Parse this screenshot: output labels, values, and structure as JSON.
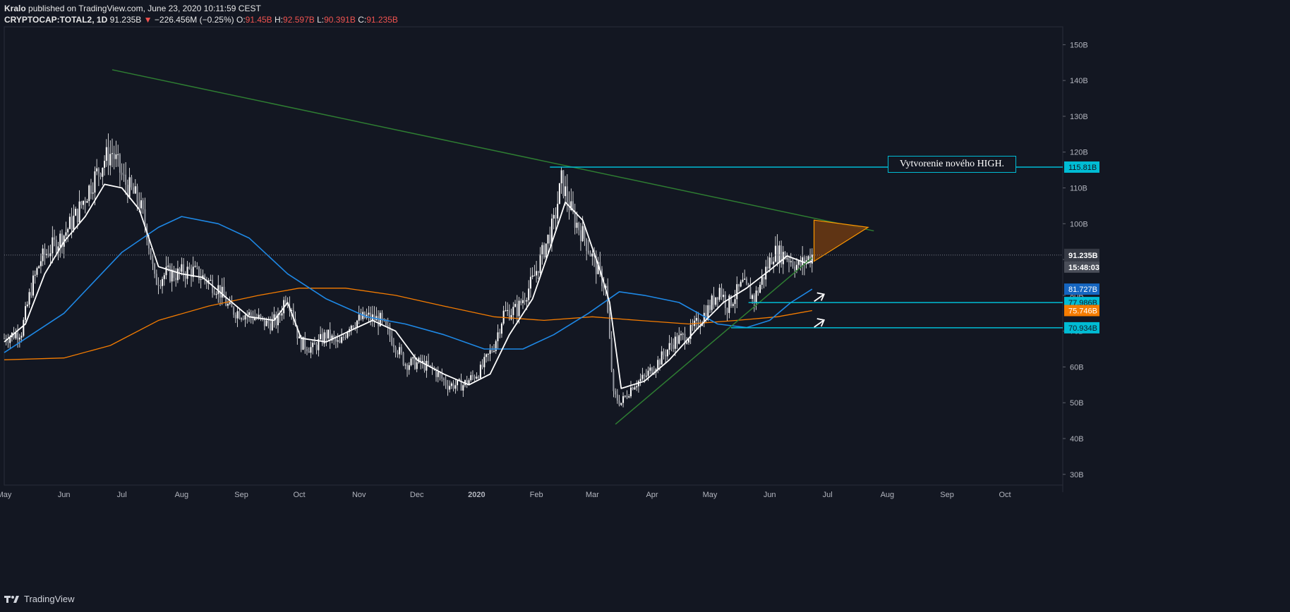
{
  "header": {
    "author": "Kralo",
    "published_text": "published on TradingView.com, June 23, 2020 10:11:59 CEST",
    "symbol": "CRYPTOCAP:TOTAL2, 1D",
    "last": "91.235B",
    "change": "−226.456M (−0.25%)",
    "o_label": "O:",
    "o_value": "91.45B",
    "h_label": "H:",
    "h_value": "92.597B",
    "l_label": "L:",
    "l_value": "90.391B",
    "c_label": "C:",
    "c_value": "91.235B"
  },
  "footer": {
    "brand": "TradingView"
  },
  "annotation": {
    "text": "Vytvorenie nového HIGH."
  },
  "colors": {
    "background": "#131722",
    "candle": "#ffffff",
    "ma_fast": "#ffffff",
    "ma_mid": "#1e88e5",
    "ma_slow": "#f57c00",
    "trendline": "#2e7d32",
    "level": "#00bcd4",
    "triangle_fill": "#6d3a12",
    "triangle_stroke": "#ff9800"
  },
  "chart_data": {
    "type": "candlestick",
    "title": "",
    "y_unit": "B",
    "yticks": [
      "150B",
      "140B",
      "130B",
      "120B",
      "110B",
      "100B",
      "90B",
      "80B",
      "70B",
      "60B",
      "50B",
      "40B",
      "30B"
    ],
    "ylim": [
      27,
      155
    ],
    "x_start": "2019-05-01",
    "x_end": "2020-10-31",
    "xticks": [
      {
        "label": "May",
        "date": "2019-05-01"
      },
      {
        "label": "Jun",
        "date": "2019-06-01"
      },
      {
        "label": "Jul",
        "date": "2019-07-01"
      },
      {
        "label": "Aug",
        "date": "2019-08-01"
      },
      {
        "label": "Sep",
        "date": "2019-09-01"
      },
      {
        "label": "Oct",
        "date": "2019-10-01"
      },
      {
        "label": "Nov",
        "date": "2019-11-01"
      },
      {
        "label": "Dec",
        "date": "2019-12-01"
      },
      {
        "label": "2020",
        "date": "2020-01-01"
      },
      {
        "label": "Feb",
        "date": "2020-02-01"
      },
      {
        "label": "Mar",
        "date": "2020-03-01"
      },
      {
        "label": "Apr",
        "date": "2020-04-01"
      },
      {
        "label": "May",
        "date": "2020-05-01"
      },
      {
        "label": "Jun",
        "date": "2020-06-01"
      },
      {
        "label": "Jul",
        "date": "2020-07-01"
      },
      {
        "label": "Aug",
        "date": "2020-08-01"
      },
      {
        "label": "Sep",
        "date": "2020-09-01"
      },
      {
        "label": "Oct",
        "date": "2020-10-01"
      }
    ],
    "close_series": [
      [
        "2019-05-01",
        68
      ],
      [
        "2019-05-10",
        70
      ],
      [
        "2019-05-15",
        82
      ],
      [
        "2019-05-20",
        90
      ],
      [
        "2019-05-25",
        93
      ],
      [
        "2019-06-01",
        97
      ],
      [
        "2019-06-08",
        103
      ],
      [
        "2019-06-15",
        111
      ],
      [
        "2019-06-22",
        118
      ],
      [
        "2019-06-26",
        120
      ],
      [
        "2019-07-02",
        112
      ],
      [
        "2019-07-10",
        106
      ],
      [
        "2019-07-14",
        98
      ],
      [
        "2019-07-18",
        84
      ],
      [
        "2019-07-24",
        86
      ],
      [
        "2019-07-30",
        86
      ],
      [
        "2019-08-06",
        87
      ],
      [
        "2019-08-12",
        85
      ],
      [
        "2019-08-20",
        82
      ],
      [
        "2019-08-26",
        76
      ],
      [
        "2019-09-02",
        75
      ],
      [
        "2019-09-08",
        74
      ],
      [
        "2019-09-14",
        72
      ],
      [
        "2019-09-20",
        73
      ],
      [
        "2019-09-24",
        80
      ],
      [
        "2019-09-27",
        77
      ],
      [
        "2019-10-01",
        67
      ],
      [
        "2019-10-08",
        65
      ],
      [
        "2019-10-15",
        69
      ],
      [
        "2019-10-22",
        66
      ],
      [
        "2019-10-27",
        72
      ],
      [
        "2019-11-05",
        74
      ],
      [
        "2019-11-12",
        73
      ],
      [
        "2019-11-19",
        67
      ],
      [
        "2019-11-25",
        61
      ],
      [
        "2019-12-03",
        61
      ],
      [
        "2019-12-10",
        59
      ],
      [
        "2019-12-17",
        55
      ],
      [
        "2019-12-25",
        55
      ],
      [
        "2020-01-03",
        59
      ],
      [
        "2020-01-10",
        66
      ],
      [
        "2020-01-15",
        75
      ],
      [
        "2020-01-22",
        76
      ],
      [
        "2020-01-30",
        84
      ],
      [
        "2020-02-05",
        93
      ],
      [
        "2020-02-10",
        100
      ],
      [
        "2020-02-14",
        112
      ],
      [
        "2020-02-20",
        102
      ],
      [
        "2020-02-26",
        96
      ],
      [
        "2020-03-03",
        88
      ],
      [
        "2020-03-08",
        82
      ],
      [
        "2020-03-12",
        52
      ],
      [
        "2020-03-16",
        50
      ],
      [
        "2020-03-22",
        55
      ],
      [
        "2020-03-28",
        57
      ],
      [
        "2020-04-05",
        62
      ],
      [
        "2020-04-12",
        67
      ],
      [
        "2020-04-20",
        69
      ],
      [
        "2020-04-30",
        76
      ],
      [
        "2020-05-06",
        82
      ],
      [
        "2020-05-10",
        77
      ],
      [
        "2020-05-18",
        83
      ],
      [
        "2020-05-24",
        79
      ],
      [
        "2020-05-30",
        87
      ],
      [
        "2020-06-03",
        92
      ],
      [
        "2020-06-10",
        91
      ],
      [
        "2020-06-16",
        88
      ],
      [
        "2020-06-23",
        91.235
      ]
    ],
    "ma_fast": [
      [
        "2019-05-01",
        67
      ],
      [
        "2019-05-12",
        72
      ],
      [
        "2019-05-22",
        86
      ],
      [
        "2019-06-01",
        95
      ],
      [
        "2019-06-12",
        102
      ],
      [
        "2019-06-22",
        111
      ],
      [
        "2019-07-01",
        110
      ],
      [
        "2019-07-10",
        104
      ],
      [
        "2019-07-20",
        88
      ],
      [
        "2019-08-01",
        86
      ],
      [
        "2019-08-12",
        85
      ],
      [
        "2019-08-25",
        79
      ],
      [
        "2019-09-05",
        74
      ],
      [
        "2019-09-18",
        73
      ],
      [
        "2019-09-25",
        78
      ],
      [
        "2019-10-02",
        68
      ],
      [
        "2019-10-15",
        67
      ],
      [
        "2019-10-27",
        70
      ],
      [
        "2019-11-08",
        73
      ],
      [
        "2019-11-20",
        70
      ],
      [
        "2019-12-01",
        62
      ],
      [
        "2019-12-15",
        58
      ],
      [
        "2019-12-28",
        55
      ],
      [
        "2020-01-08",
        58
      ],
      [
        "2020-01-18",
        69
      ],
      [
        "2020-01-30",
        79
      ],
      [
        "2020-02-08",
        93
      ],
      [
        "2020-02-16",
        106
      ],
      [
        "2020-02-25",
        101
      ],
      [
        "2020-03-05",
        87
      ],
      [
        "2020-03-10",
        78
      ],
      [
        "2020-03-16",
        54
      ],
      [
        "2020-03-28",
        56
      ],
      [
        "2020-04-10",
        62
      ],
      [
        "2020-04-25",
        71
      ],
      [
        "2020-05-08",
        78
      ],
      [
        "2020-05-20",
        82
      ],
      [
        "2020-06-01",
        87
      ],
      [
        "2020-06-10",
        91
      ],
      [
        "2020-06-20",
        89
      ],
      [
        "2020-06-23",
        89.5
      ]
    ],
    "ma_mid": [
      [
        "2019-05-01",
        64
      ],
      [
        "2019-06-01",
        75
      ],
      [
        "2019-07-01",
        92
      ],
      [
        "2019-07-20",
        99
      ],
      [
        "2019-08-01",
        102
      ],
      [
        "2019-08-20",
        100
      ],
      [
        "2019-09-05",
        96
      ],
      [
        "2019-09-25",
        86
      ],
      [
        "2019-10-15",
        79
      ],
      [
        "2019-11-05",
        74
      ],
      [
        "2019-11-25",
        72
      ],
      [
        "2019-12-15",
        69
      ],
      [
        "2020-01-05",
        65
      ],
      [
        "2020-01-25",
        65
      ],
      [
        "2020-02-10",
        69
      ],
      [
        "2020-02-28",
        75
      ],
      [
        "2020-03-15",
        81
      ],
      [
        "2020-03-28",
        80
      ],
      [
        "2020-04-15",
        78
      ],
      [
        "2020-05-05",
        72
      ],
      [
        "2020-05-20",
        71
      ],
      [
        "2020-06-01",
        73
      ],
      [
        "2020-06-12",
        78
      ],
      [
        "2020-06-23",
        81.727
      ]
    ],
    "ma_slow": [
      [
        "2019-05-01",
        62
      ],
      [
        "2019-06-01",
        62.5
      ],
      [
        "2019-06-25",
        66
      ],
      [
        "2019-07-20",
        73
      ],
      [
        "2019-08-15",
        77
      ],
      [
        "2019-09-10",
        80
      ],
      [
        "2019-10-01",
        82
      ],
      [
        "2019-10-25",
        82
      ],
      [
        "2019-11-20",
        80
      ],
      [
        "2019-12-15",
        77
      ],
      [
        "2020-01-10",
        74
      ],
      [
        "2020-02-05",
        73
      ],
      [
        "2020-03-01",
        74
      ],
      [
        "2020-03-25",
        73
      ],
      [
        "2020-04-20",
        72
      ],
      [
        "2020-05-15",
        73
      ],
      [
        "2020-06-05",
        74
      ],
      [
        "2020-06-23",
        75.746
      ]
    ],
    "trendlines": [
      {
        "from": [
          "2019-06-26",
          143
        ],
        "to": [
          "2020-07-25",
          98
        ]
      },
      {
        "from": [
          "2020-03-13",
          44
        ],
        "to": [
          "2020-06-23",
          90.5
        ]
      }
    ],
    "horizontal_levels": [
      {
        "value": 115.81,
        "from": "2020-02-08",
        "label": "115.81B"
      },
      {
        "value": 77.986,
        "from": "2020-05-21",
        "label": "77.986B"
      },
      {
        "value": 70.934,
        "from": "2020-05-12",
        "label": "70.934B"
      }
    ],
    "price_line": {
      "value": 91.235,
      "label": "91.235B",
      "timer": "15:48:03"
    },
    "axis_labels": [
      {
        "value": 81.727,
        "label": "81.727B",
        "color": "#1565c0"
      },
      {
        "value": 75.746,
        "label": "75.746B",
        "color": "#f57c00"
      }
    ],
    "triangle": [
      [
        "2020-06-24",
        101
      ],
      [
        "2020-07-22",
        99
      ],
      [
        "2020-06-24",
        89.5
      ]
    ],
    "arrows": [
      {
        "date": "2020-06-27",
        "value": 79.5
      },
      {
        "date": "2020-06-27",
        "value": 72.3
      }
    ]
  }
}
